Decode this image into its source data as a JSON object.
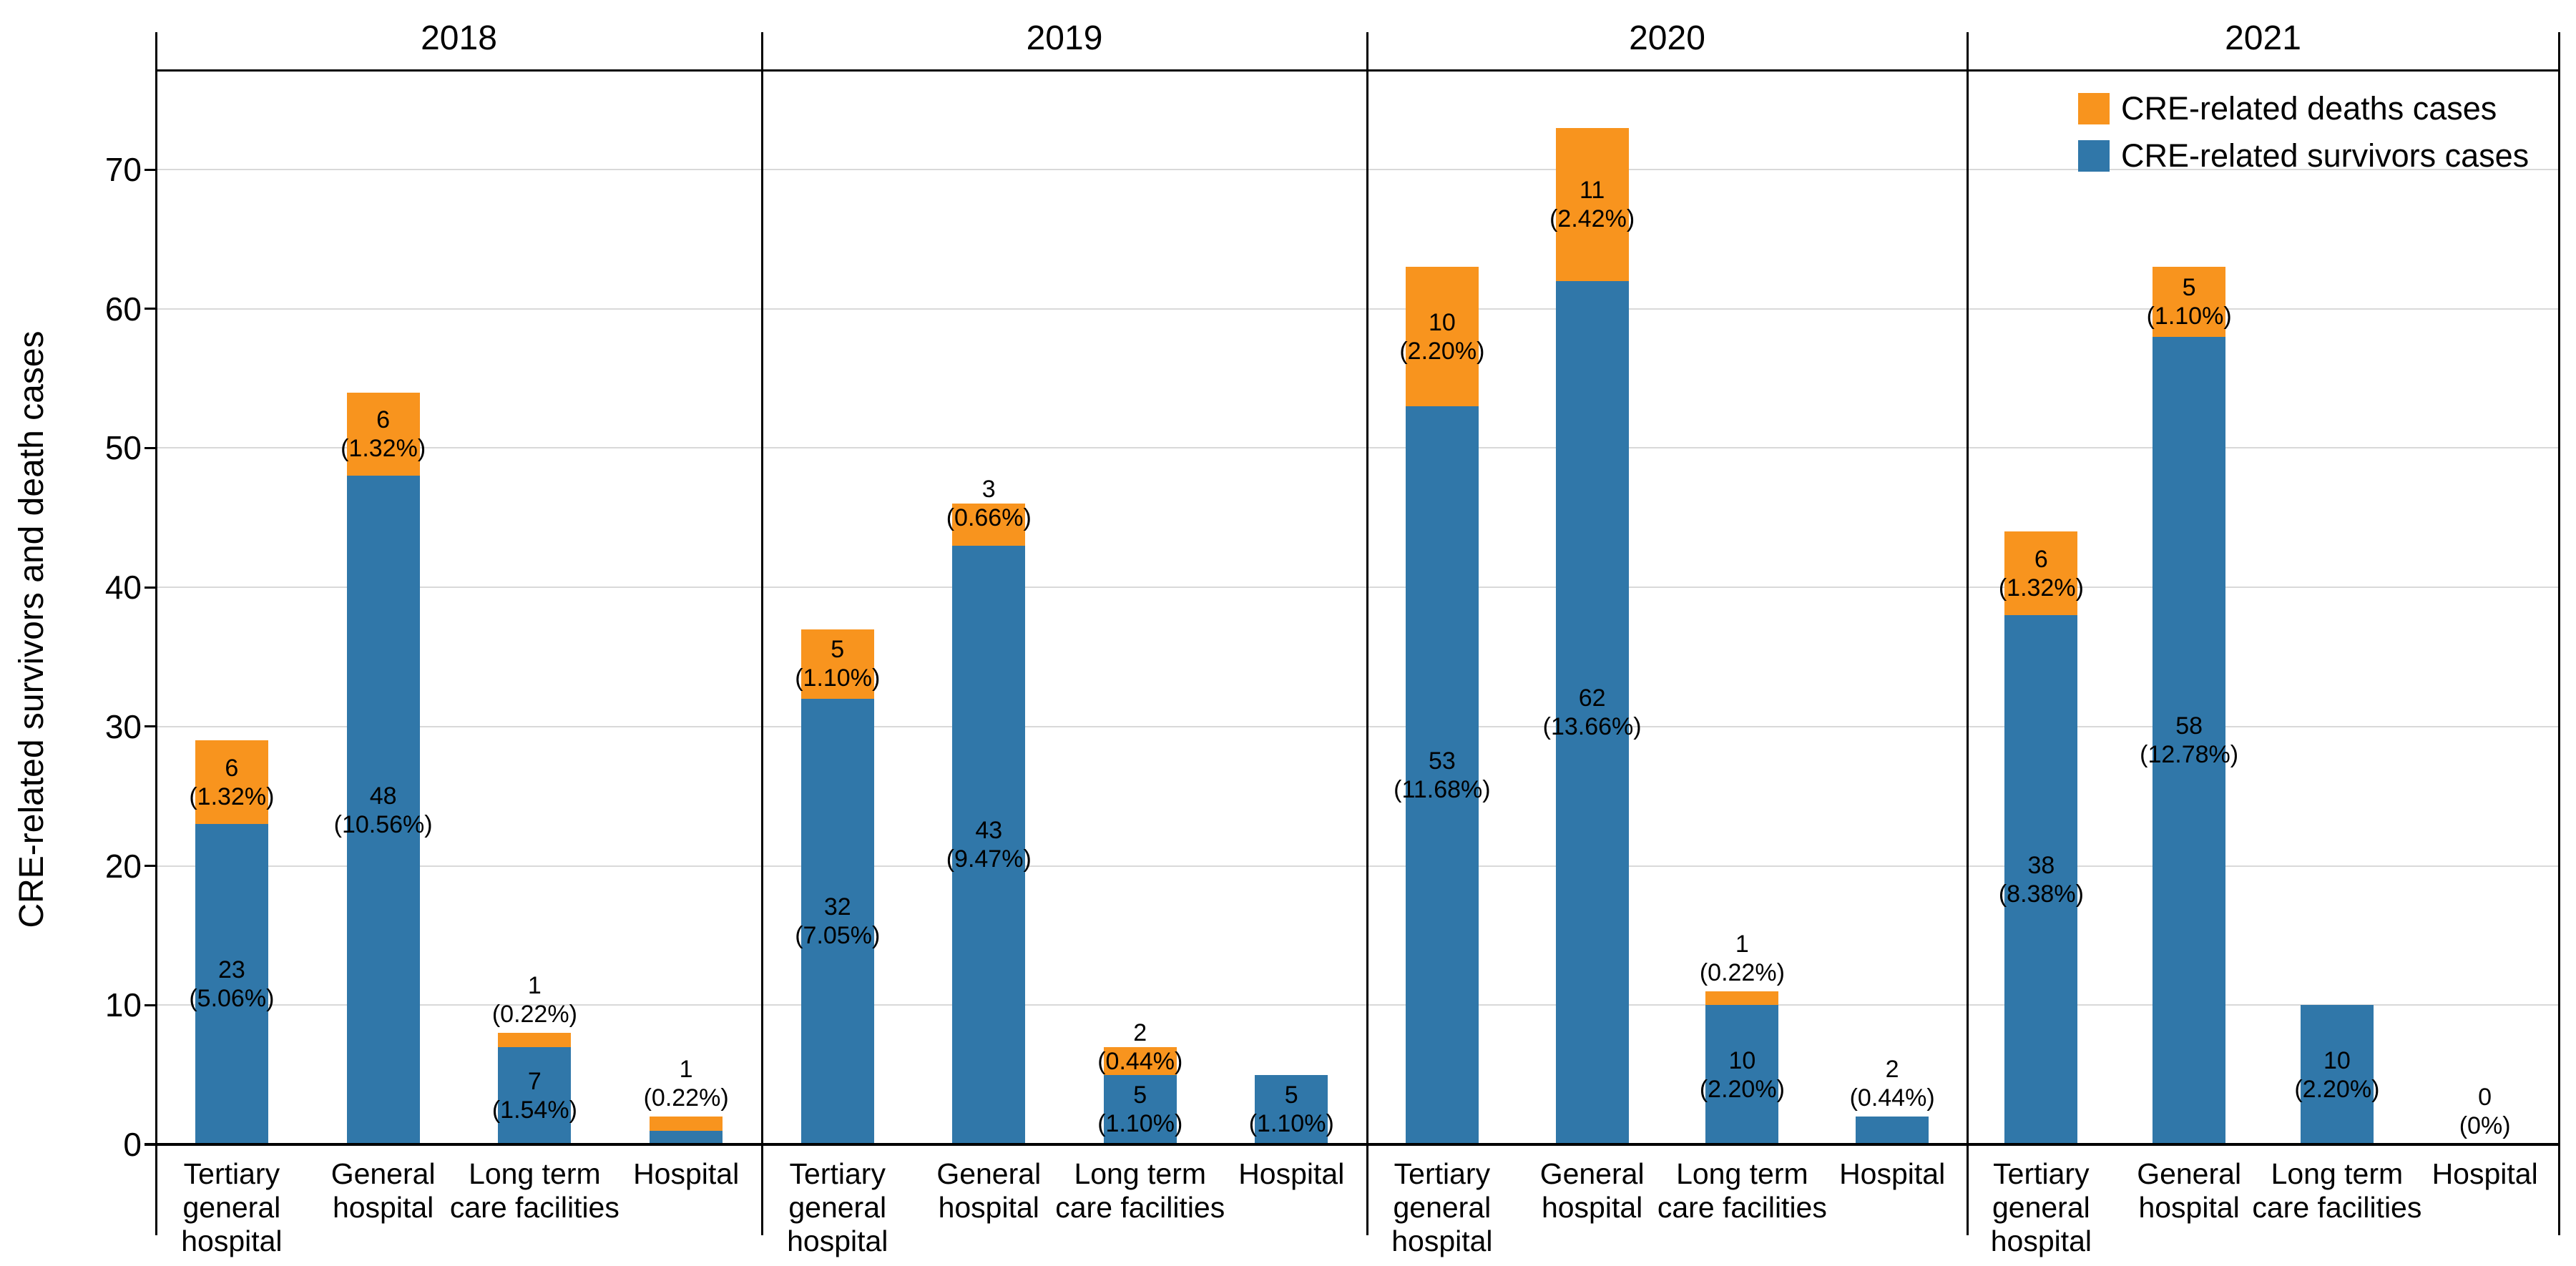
{
  "figure": {
    "y_axis_title": "CRE-related survivors and death cases",
    "legend": [
      {
        "series": "deaths",
        "label": "CRE-related deaths cases"
      },
      {
        "series": "survivors",
        "label": "CRE-related survivors cases"
      }
    ],
    "colors": {
      "deaths": "#F8941E",
      "survivors": "#3077A9",
      "grid": "#d9d9d9",
      "axis": "#000000"
    }
  },
  "chart_data": {
    "type": "bar",
    "stacked": true,
    "grid": true,
    "legend_position": "top-right",
    "ylabel": "CRE-related survivors and death cases",
    "ylim": [
      0,
      77
    ],
    "yticks": [
      0,
      10,
      20,
      30,
      40,
      50,
      60,
      70
    ],
    "facets": [
      "2018",
      "2019",
      "2020",
      "2021"
    ],
    "category_lines": [
      [
        "Tertiary",
        "general",
        "hospital"
      ],
      [
        "General",
        "hospital"
      ],
      [
        "Long term",
        "care facilities"
      ],
      [
        "Hospital"
      ]
    ],
    "series_names": {
      "survivors": "CRE-related survivors cases",
      "deaths": "CRE-related deaths cases"
    },
    "panels": [
      {
        "year": "2018",
        "bars": [
          {
            "category": "Tertiary general hospital",
            "survivors": 23,
            "survivors_pct": "(5.06%)",
            "deaths": 6,
            "deaths_pct": "(1.32%)"
          },
          {
            "category": "General hospital",
            "survivors": 48,
            "survivors_pct": "(10.56%)",
            "deaths": 6,
            "deaths_pct": "(1.32%)"
          },
          {
            "category": "Long term care facilities",
            "survivors": 7,
            "survivors_pct": "(1.54%)",
            "deaths": 1,
            "deaths_pct": "(0.22%)"
          },
          {
            "category": "Hospital",
            "survivors": 1,
            "survivors_pct": null,
            "deaths": 1,
            "deaths_pct": "(0.22%)"
          }
        ]
      },
      {
        "year": "2019",
        "bars": [
          {
            "category": "Tertiary general hospital",
            "survivors": 32,
            "survivors_pct": "(7.05%)",
            "deaths": 5,
            "deaths_pct": "(1.10%)"
          },
          {
            "category": "General hospital",
            "survivors": 43,
            "survivors_pct": "(9.47%)",
            "deaths": 3,
            "deaths_pct": "(0.66%)"
          },
          {
            "category": "Long term care facilities",
            "survivors": 5,
            "survivors_pct": "(1.10%)",
            "deaths": 2,
            "deaths_pct": "(0.44%)"
          },
          {
            "category": "Hospital",
            "survivors": 5,
            "survivors_pct": "(1.10%)",
            "deaths": 0,
            "deaths_pct": null
          }
        ]
      },
      {
        "year": "2020",
        "bars": [
          {
            "category": "Tertiary general hospital",
            "survivors": 53,
            "survivors_pct": "(11.68%)",
            "deaths": 10,
            "deaths_pct": "(2.20%)"
          },
          {
            "category": "General hospital",
            "survivors": 62,
            "survivors_pct": "(13.66%)",
            "deaths": 11,
            "deaths_pct": "(2.42%)"
          },
          {
            "category": "Long term care facilities",
            "survivors": 10,
            "survivors_pct": "(2.20%)",
            "deaths": 1,
            "deaths_pct": "(0.22%)"
          },
          {
            "category": "Hospital",
            "survivors": 2,
            "survivors_pct": "(0.44%)",
            "deaths": 0,
            "deaths_pct": null
          }
        ]
      },
      {
        "year": "2021",
        "bars": [
          {
            "category": "Tertiary general hospital",
            "survivors": 38,
            "survivors_pct": "(8.38%)",
            "deaths": 6,
            "deaths_pct": "(1.32%)"
          },
          {
            "category": "General hospital",
            "survivors": 58,
            "survivors_pct": "(12.78%)",
            "deaths": 5,
            "deaths_pct": "(1.10%)"
          },
          {
            "category": "Long term care facilities",
            "survivors": 10,
            "survivors_pct": "(2.20%)",
            "deaths": 0,
            "deaths_pct": null
          },
          {
            "category": "Hospital",
            "survivors": 0,
            "survivors_pct": "(0%)",
            "deaths": 0,
            "deaths_pct": null
          }
        ]
      }
    ]
  }
}
